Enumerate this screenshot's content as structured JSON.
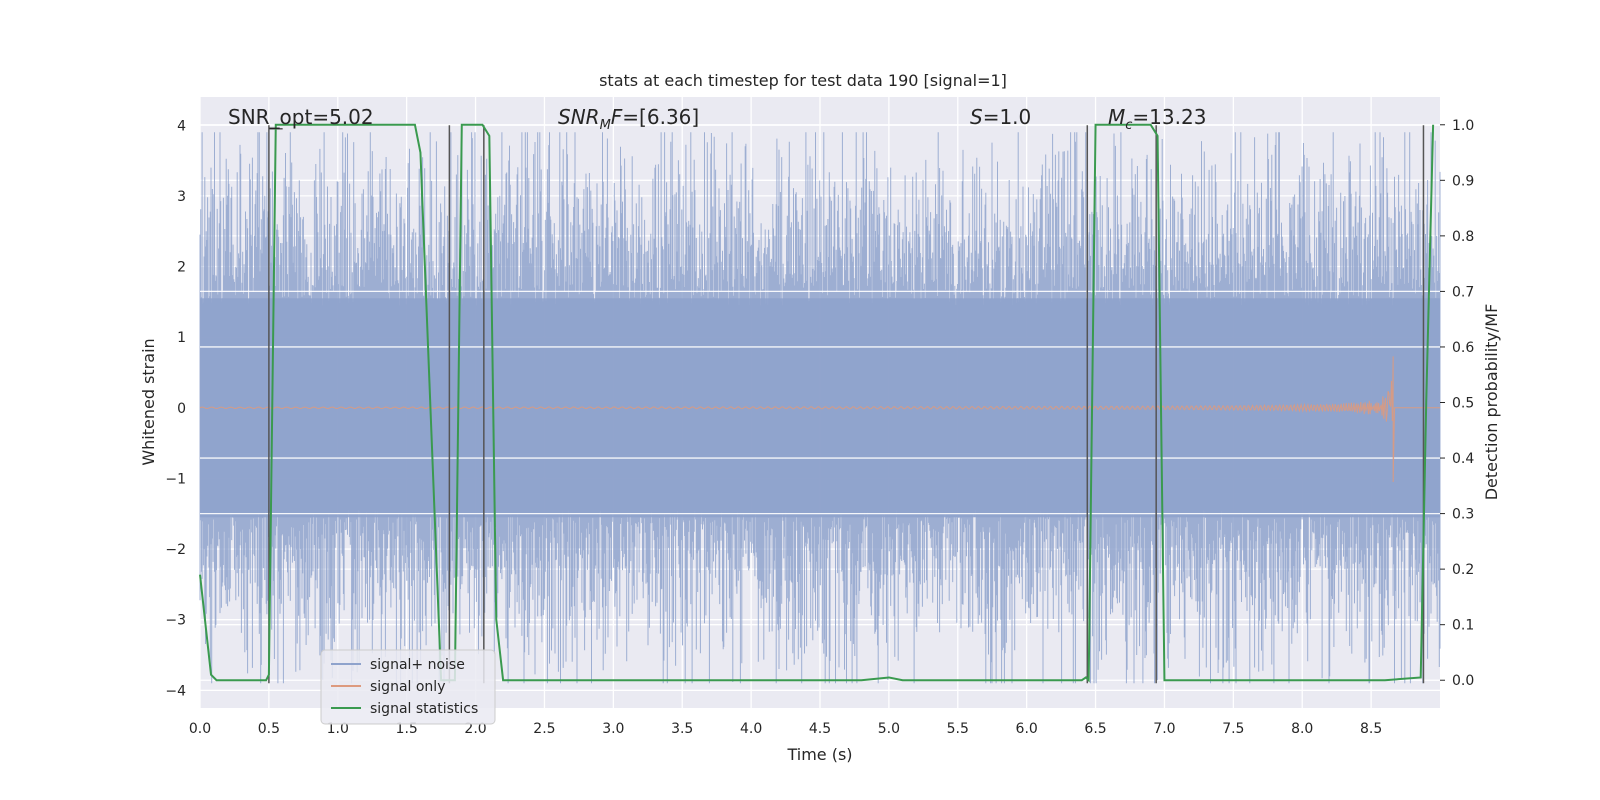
{
  "chart_data": {
    "type": "line",
    "title": "stats at each timestep for test data 190 [signal=1]",
    "xlabel": "Time (s)",
    "ylabel_left": "Whitened strain",
    "ylabel_right": "Detection probability/MF",
    "xlim": [
      0.0,
      9.0
    ],
    "ylim_left": [
      -4.25,
      4.4
    ],
    "ylim_right": [
      -0.05,
      1.05
    ],
    "x_ticks": [
      "0.0",
      "0.5",
      "1.0",
      "1.5",
      "2.0",
      "2.5",
      "3.0",
      "3.5",
      "4.0",
      "4.5",
      "5.0",
      "5.5",
      "6.0",
      "6.5",
      "7.0",
      "7.5",
      "8.0",
      "8.5"
    ],
    "y_left_ticks": [
      "−4",
      "−3",
      "−2",
      "−1",
      "0",
      "1",
      "2",
      "3",
      "4"
    ],
    "y_right_ticks": [
      "0.0",
      "0.1",
      "0.2",
      "0.3",
      "0.4",
      "0.5",
      "0.6",
      "0.7",
      "0.8",
      "0.9",
      "1.0"
    ],
    "grid": true,
    "legend_position": "lower-left",
    "annotations": {
      "snr_opt": "SNR_opt=5.02",
      "snr_mf_sym": "SNR",
      "snr_mf_sub": "M",
      "snr_mf_sym2": "F",
      "snr_mf_val": "=[6.36]",
      "s_sym": "S",
      "s_val": "=1.0",
      "mc_sym": "M",
      "mc_sub": "c",
      "mc_val": "=13.23"
    },
    "series": [
      {
        "name": "signal+ noise",
        "color": "#8fa3cc",
        "axis": "left",
        "description_values": "whitened noise, amplitude ~ ±4, samples spanning 0.0–9.0 s"
      },
      {
        "name": "signal only",
        "color": "#dd9a7e",
        "axis": "left",
        "chirp_end_time": 8.66,
        "peak_amplitude": 0.85
      },
      {
        "name": "signal statistics",
        "color": "#3a9a4f",
        "axis": "right",
        "x": [
          0.0,
          0.08,
          0.12,
          0.48,
          0.5,
          0.55,
          1.56,
          1.6,
          1.75,
          1.85,
          1.9,
          2.05,
          2.1,
          2.15,
          2.2,
          4.8,
          5.0,
          5.1,
          6.4,
          6.43,
          6.45,
          6.5,
          6.8,
          6.85,
          6.9,
          6.95,
          7.0,
          7.05,
          7.1,
          8.6,
          8.86,
          8.9,
          8.95
        ],
        "y": [
          0.19,
          0.01,
          0.0,
          0.0,
          0.01,
          1.0,
          1.0,
          0.95,
          0.0,
          0.0,
          1.0,
          1.0,
          0.98,
          0.11,
          0.0,
          0.0,
          0.005,
          0.0,
          0.0,
          0.005,
          0.0,
          1.0,
          1.0,
          1.0,
          1.0,
          0.98,
          0.0,
          0.0,
          0.0,
          0.0,
          0.005,
          0.5,
          1.0
        ]
      }
    ],
    "vertical_markers": [
      0.5,
      1.81,
      2.06,
      6.44,
      6.94,
      8.88
    ]
  }
}
